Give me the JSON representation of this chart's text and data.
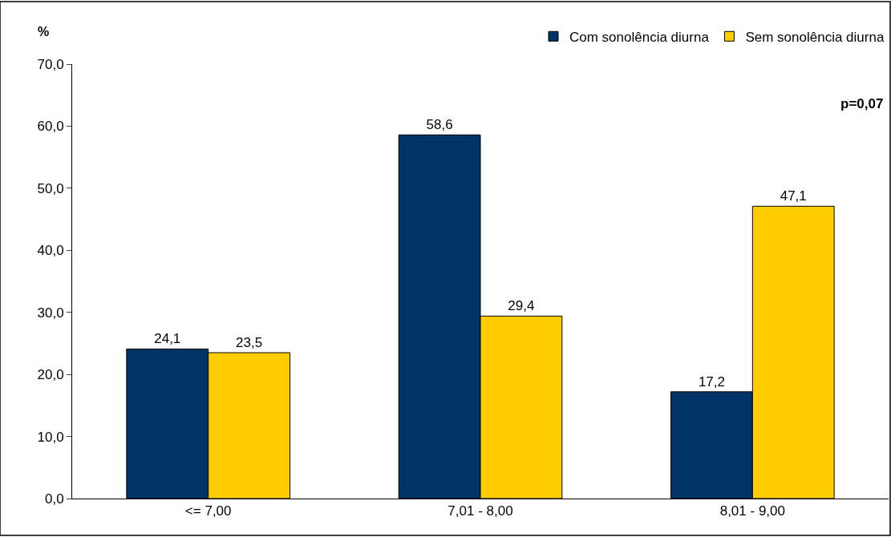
{
  "chart_data": {
    "type": "bar",
    "ylabel": "%",
    "categories": [
      "<= 7,00",
      "7,01 - 8,00",
      "8,01 - 9,00"
    ],
    "series": [
      {
        "name": "Com sonolência diurna",
        "color": "#003366",
        "values": [
          24.1,
          58.6,
          17.2
        ],
        "value_labels": [
          "24,1",
          "58,6",
          "17,2"
        ]
      },
      {
        "name": "Sem sonolência diurna",
        "color": "#ffcc00",
        "values": [
          23.5,
          29.4,
          47.1
        ],
        "value_labels": [
          "23,5",
          "29,4",
          "47,1"
        ]
      }
    ],
    "ylim": [
      0,
      70
    ],
    "yticks": [
      {
        "value": 0,
        "label": "0,0"
      },
      {
        "value": 10,
        "label": "10,0"
      },
      {
        "value": 20,
        "label": "20,0"
      },
      {
        "value": 30,
        "label": "30,0"
      },
      {
        "value": 40,
        "label": "40,0"
      },
      {
        "value": 50,
        "label": "50,0"
      },
      {
        "value": 60,
        "label": "60,0"
      },
      {
        "value": 70,
        "label": "70,0"
      }
    ],
    "annotations": [
      "p=0,07"
    ],
    "legend": "top right"
  }
}
